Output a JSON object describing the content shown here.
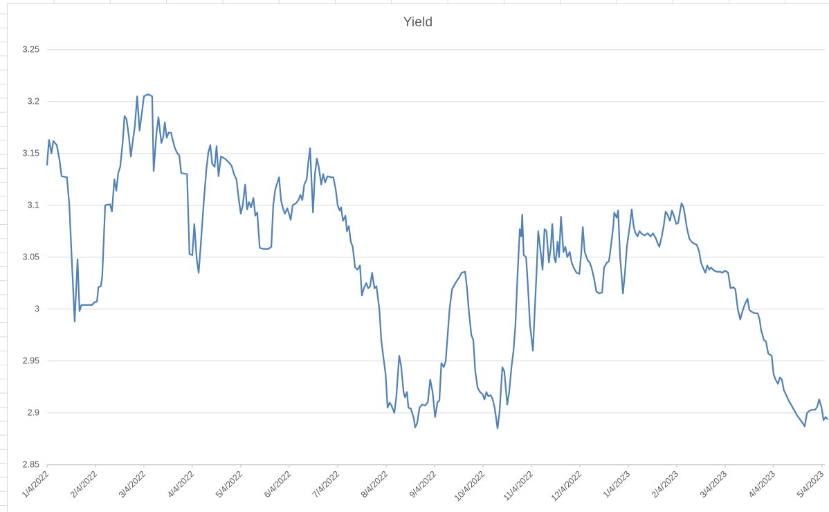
{
  "chart_data": {
    "type": "line",
    "title": "Yield",
    "series": [
      {
        "name": "Yield"
      }
    ],
    "xlabel": "",
    "ylabel": "",
    "ylim": [
      2.85,
      3.25
    ],
    "y_tick_interval": 0.05,
    "y_tick_labels": [
      "2.85",
      "2.9",
      "2.95",
      "3",
      "3.05",
      "3.1",
      "3.15",
      "3.2",
      "3.25"
    ],
    "x_tick_labels": [
      "1/4/2022",
      "2/4/2022",
      "3/4/2022",
      "4/4/2022",
      "5/4/2022",
      "6/4/2022",
      "7/4/2022",
      "8/4/2022",
      "9/4/2022",
      "10/4/2022",
      "11/4/2022",
      "12/4/2022",
      "1/4/2023",
      "2/4/2023",
      "3/4/2023",
      "4/4/2023",
      "5/4/2023"
    ],
    "x_unit": "months since 1/4/2022",
    "grid": "horizontal-major",
    "legend_position": "none",
    "line_color": "#4F81BD",
    "gridline_color": "#D9D9D9",
    "axis_color": "#BFBFBF",
    "tick_label_color": "#595959",
    "title_color": "#595959",
    "background": "#FFFFFF",
    "points": [
      [
        0.0,
        3.139
      ],
      [
        0.04,
        3.163
      ],
      [
        0.09,
        3.15
      ],
      [
        0.13,
        3.162
      ],
      [
        0.2,
        3.158
      ],
      [
        0.26,
        3.143
      ],
      [
        0.3,
        3.128
      ],
      [
        0.41,
        3.127
      ],
      [
        0.46,
        3.1
      ],
      [
        0.51,
        3.048
      ],
      [
        0.57,
        2.988
      ],
      [
        0.63,
        3.048
      ],
      [
        0.67,
        2.998
      ],
      [
        0.71,
        3.004
      ],
      [
        0.93,
        3.004
      ],
      [
        0.99,
        3.007
      ],
      [
        1.03,
        3.007
      ],
      [
        1.06,
        3.021
      ],
      [
        1.11,
        3.022
      ],
      [
        1.14,
        3.032
      ],
      [
        1.2,
        3.1
      ],
      [
        1.3,
        3.101
      ],
      [
        1.34,
        3.094
      ],
      [
        1.39,
        3.125
      ],
      [
        1.43,
        3.114
      ],
      [
        1.47,
        3.131
      ],
      [
        1.51,
        3.137
      ],
      [
        1.56,
        3.16
      ],
      [
        1.6,
        3.186
      ],
      [
        1.64,
        3.183
      ],
      [
        1.69,
        3.166
      ],
      [
        1.73,
        3.147
      ],
      [
        1.77,
        3.162
      ],
      [
        1.81,
        3.175
      ],
      [
        1.86,
        3.205
      ],
      [
        1.91,
        3.172
      ],
      [
        1.96,
        3.19
      ],
      [
        2.0,
        3.205
      ],
      [
        2.09,
        3.207
      ],
      [
        2.17,
        3.205
      ],
      [
        2.2,
        3.133
      ],
      [
        2.26,
        3.17
      ],
      [
        2.3,
        3.185
      ],
      [
        2.36,
        3.16
      ],
      [
        2.4,
        3.166
      ],
      [
        2.43,
        3.18
      ],
      [
        2.47,
        3.165
      ],
      [
        2.51,
        3.17
      ],
      [
        2.56,
        3.17
      ],
      [
        2.6,
        3.162
      ],
      [
        2.64,
        3.155
      ],
      [
        2.69,
        3.15
      ],
      [
        2.73,
        3.148
      ],
      [
        2.77,
        3.131
      ],
      [
        2.89,
        3.13
      ],
      [
        2.94,
        3.053
      ],
      [
        3.0,
        3.052
      ],
      [
        3.04,
        3.082
      ],
      [
        3.09,
        3.048
      ],
      [
        3.13,
        3.035
      ],
      [
        3.17,
        3.06
      ],
      [
        3.23,
        3.1
      ],
      [
        3.29,
        3.135
      ],
      [
        3.33,
        3.151
      ],
      [
        3.37,
        3.158
      ],
      [
        3.41,
        3.14
      ],
      [
        3.46,
        3.137
      ],
      [
        3.5,
        3.157
      ],
      [
        3.54,
        3.128
      ],
      [
        3.59,
        3.147
      ],
      [
        3.67,
        3.145
      ],
      [
        3.74,
        3.142
      ],
      [
        3.81,
        3.138
      ],
      [
        3.86,
        3.13
      ],
      [
        3.91,
        3.125
      ],
      [
        3.96,
        3.105
      ],
      [
        4.0,
        3.092
      ],
      [
        4.04,
        3.1
      ],
      [
        4.09,
        3.12
      ],
      [
        4.13,
        3.096
      ],
      [
        4.17,
        3.103
      ],
      [
        4.21,
        3.098
      ],
      [
        4.26,
        3.107
      ],
      [
        4.3,
        3.09
      ],
      [
        4.34,
        3.093
      ],
      [
        4.39,
        3.059
      ],
      [
        4.46,
        3.058
      ],
      [
        4.57,
        3.058
      ],
      [
        4.63,
        3.06
      ],
      [
        4.67,
        3.1
      ],
      [
        4.71,
        3.115
      ],
      [
        4.79,
        3.127
      ],
      [
        4.83,
        3.105
      ],
      [
        4.87,
        3.097
      ],
      [
        4.91,
        3.092
      ],
      [
        4.96,
        3.097
      ],
      [
        5.0,
        3.091
      ],
      [
        5.03,
        3.086
      ],
      [
        5.07,
        3.1
      ],
      [
        5.14,
        3.102
      ],
      [
        5.19,
        3.105
      ],
      [
        5.23,
        3.11
      ],
      [
        5.27,
        3.105
      ],
      [
        5.31,
        3.12
      ],
      [
        5.36,
        3.125
      ],
      [
        5.39,
        3.14
      ],
      [
        5.43,
        3.155
      ],
      [
        5.49,
        3.093
      ],
      [
        5.53,
        3.13
      ],
      [
        5.57,
        3.145
      ],
      [
        5.61,
        3.137
      ],
      [
        5.66,
        3.12
      ],
      [
        5.7,
        3.13
      ],
      [
        5.74,
        3.122
      ],
      [
        5.79,
        3.128
      ],
      [
        5.86,
        3.127
      ],
      [
        5.91,
        3.127
      ],
      [
        5.96,
        3.115
      ],
      [
        6.0,
        3.1
      ],
      [
        6.04,
        3.095
      ],
      [
        6.07,
        3.098
      ],
      [
        6.11,
        3.085
      ],
      [
        6.16,
        3.09
      ],
      [
        6.19,
        3.075
      ],
      [
        6.23,
        3.08
      ],
      [
        6.27,
        3.065
      ],
      [
        6.31,
        3.06
      ],
      [
        6.36,
        3.04
      ],
      [
        6.41,
        3.038
      ],
      [
        6.46,
        3.042
      ],
      [
        6.5,
        3.013
      ],
      [
        6.54,
        3.02
      ],
      [
        6.59,
        3.025
      ],
      [
        6.63,
        3.02
      ],
      [
        6.67,
        3.022
      ],
      [
        6.71,
        3.035
      ],
      [
        6.76,
        3.02
      ],
      [
        6.8,
        3.022
      ],
      [
        6.86,
        3.0
      ],
      [
        6.9,
        2.97
      ],
      [
        6.94,
        2.955
      ],
      [
        6.99,
        2.937
      ],
      [
        7.03,
        2.905
      ],
      [
        7.07,
        2.91
      ],
      [
        7.11,
        2.907
      ],
      [
        7.17,
        2.9
      ],
      [
        7.21,
        2.915
      ],
      [
        7.27,
        2.955
      ],
      [
        7.31,
        2.945
      ],
      [
        7.36,
        2.92
      ],
      [
        7.39,
        2.915
      ],
      [
        7.43,
        2.92
      ],
      [
        7.46,
        2.905
      ],
      [
        7.51,
        2.904
      ],
      [
        7.57,
        2.895
      ],
      [
        7.6,
        2.886
      ],
      [
        7.64,
        2.89
      ],
      [
        7.69,
        2.905
      ],
      [
        7.74,
        2.908
      ],
      [
        7.8,
        2.907
      ],
      [
        7.86,
        2.91
      ],
      [
        7.91,
        2.932
      ],
      [
        7.96,
        2.92
      ],
      [
        8.01,
        2.896
      ],
      [
        8.06,
        2.91
      ],
      [
        8.1,
        2.912
      ],
      [
        8.14,
        2.948
      ],
      [
        8.19,
        2.944
      ],
      [
        8.23,
        2.95
      ],
      [
        8.27,
        2.975
      ],
      [
        8.31,
        3.0
      ],
      [
        8.36,
        3.019
      ],
      [
        8.43,
        3.025
      ],
      [
        8.5,
        3.03
      ],
      [
        8.56,
        3.035
      ],
      [
        8.63,
        3.036
      ],
      [
        8.67,
        3.02
      ],
      [
        8.71,
        2.997
      ],
      [
        8.76,
        2.975
      ],
      [
        8.8,
        2.97
      ],
      [
        8.84,
        2.94
      ],
      [
        8.89,
        2.924
      ],
      [
        8.94,
        2.92
      ],
      [
        8.99,
        2.918
      ],
      [
        9.03,
        2.913
      ],
      [
        9.07,
        2.92
      ],
      [
        9.11,
        2.916
      ],
      [
        9.16,
        2.917
      ],
      [
        9.2,
        2.913
      ],
      [
        9.24,
        2.905
      ],
      [
        9.3,
        2.885
      ],
      [
        9.34,
        2.9
      ],
      [
        9.4,
        2.944
      ],
      [
        9.44,
        2.94
      ],
      [
        9.5,
        2.908
      ],
      [
        9.54,
        2.92
      ],
      [
        9.59,
        2.945
      ],
      [
        9.63,
        2.96
      ],
      [
        9.67,
        2.985
      ],
      [
        9.71,
        3.03
      ],
      [
        9.76,
        3.077
      ],
      [
        9.79,
        3.07
      ],
      [
        9.81,
        3.091
      ],
      [
        9.84,
        3.052
      ],
      [
        9.89,
        3.05
      ],
      [
        9.93,
        3.02
      ],
      [
        9.97,
        2.985
      ],
      [
        10.03,
        2.96
      ],
      [
        10.07,
        3.0
      ],
      [
        10.11,
        3.04
      ],
      [
        10.14,
        3.075
      ],
      [
        10.19,
        3.055
      ],
      [
        10.23,
        3.038
      ],
      [
        10.27,
        3.077
      ],
      [
        10.31,
        3.075
      ],
      [
        10.36,
        3.045
      ],
      [
        10.4,
        3.06
      ],
      [
        10.43,
        3.082
      ],
      [
        10.47,
        3.05
      ],
      [
        10.5,
        3.045
      ],
      [
        10.54,
        3.065
      ],
      [
        10.57,
        3.05
      ],
      [
        10.61,
        3.089
      ],
      [
        10.66,
        3.055
      ],
      [
        10.7,
        3.06
      ],
      [
        10.74,
        3.05
      ],
      [
        10.79,
        3.055
      ],
      [
        10.83,
        3.045
      ],
      [
        10.87,
        3.04
      ],
      [
        10.93,
        3.035
      ],
      [
        10.99,
        3.034
      ],
      [
        11.03,
        3.055
      ],
      [
        11.06,
        3.079
      ],
      [
        11.1,
        3.055
      ],
      [
        11.16,
        3.047
      ],
      [
        11.2,
        3.045
      ],
      [
        11.24,
        3.04
      ],
      [
        11.29,
        3.03
      ],
      [
        11.34,
        3.017
      ],
      [
        11.4,
        3.015
      ],
      [
        11.46,
        3.016
      ],
      [
        11.5,
        3.04
      ],
      [
        11.56,
        3.045
      ],
      [
        11.6,
        3.046
      ],
      [
        11.64,
        3.06
      ],
      [
        11.69,
        3.08
      ],
      [
        11.71,
        3.093
      ],
      [
        11.76,
        3.088
      ],
      [
        11.79,
        3.095
      ],
      [
        11.83,
        3.05
      ],
      [
        11.89,
        3.015
      ],
      [
        11.93,
        3.035
      ],
      [
        11.97,
        3.06
      ],
      [
        12.03,
        3.08
      ],
      [
        12.07,
        3.096
      ],
      [
        12.11,
        3.08
      ],
      [
        12.14,
        3.074
      ],
      [
        12.19,
        3.07
      ],
      [
        12.23,
        3.075
      ],
      [
        12.29,
        3.072
      ],
      [
        12.34,
        3.071
      ],
      [
        12.4,
        3.073
      ],
      [
        12.46,
        3.07
      ],
      [
        12.51,
        3.073
      ],
      [
        12.57,
        3.068
      ],
      [
        12.6,
        3.064
      ],
      [
        12.64,
        3.06
      ],
      [
        12.69,
        3.07
      ],
      [
        12.73,
        3.08
      ],
      [
        12.77,
        3.094
      ],
      [
        12.81,
        3.091
      ],
      [
        12.86,
        3.085
      ],
      [
        12.9,
        3.095
      ],
      [
        12.94,
        3.09
      ],
      [
        12.99,
        3.082
      ],
      [
        13.03,
        3.083
      ],
      [
        13.07,
        3.095
      ],
      [
        13.1,
        3.102
      ],
      [
        13.14,
        3.098
      ],
      [
        13.17,
        3.09
      ],
      [
        13.21,
        3.078
      ],
      [
        13.26,
        3.068
      ],
      [
        13.3,
        3.065
      ],
      [
        13.36,
        3.063
      ],
      [
        13.41,
        3.062
      ],
      [
        13.46,
        3.056
      ],
      [
        13.5,
        3.045
      ],
      [
        13.54,
        3.04
      ],
      [
        13.59,
        3.035
      ],
      [
        13.63,
        3.042
      ],
      [
        13.67,
        3.038
      ],
      [
        13.71,
        3.04
      ],
      [
        13.77,
        3.037
      ],
      [
        13.83,
        3.036
      ],
      [
        13.89,
        3.036
      ],
      [
        13.94,
        3.035
      ],
      [
        14.0,
        3.037
      ],
      [
        14.06,
        3.035
      ],
      [
        14.11,
        3.02
      ],
      [
        14.17,
        3.021
      ],
      [
        14.21,
        3.019
      ],
      [
        14.26,
        3.0
      ],
      [
        14.31,
        2.99
      ],
      [
        14.37,
        3.0
      ],
      [
        14.41,
        3.005
      ],
      [
        14.46,
        3.01
      ],
      [
        14.5,
        2.999
      ],
      [
        14.56,
        2.997
      ],
      [
        14.61,
        2.996
      ],
      [
        14.67,
        2.996
      ],
      [
        14.71,
        2.99
      ],
      [
        14.74,
        2.98
      ],
      [
        14.8,
        2.97
      ],
      [
        14.84,
        2.969
      ],
      [
        14.89,
        2.957
      ],
      [
        14.96,
        2.955
      ],
      [
        15.0,
        2.937
      ],
      [
        15.04,
        2.932
      ],
      [
        15.09,
        2.928
      ],
      [
        15.13,
        2.934
      ],
      [
        15.17,
        2.932
      ],
      [
        15.21,
        2.922
      ],
      [
        15.26,
        2.917
      ],
      [
        15.31,
        2.912
      ],
      [
        15.37,
        2.907
      ],
      [
        15.43,
        2.902
      ],
      [
        15.49,
        2.897
      ],
      [
        15.54,
        2.894
      ],
      [
        15.6,
        2.89
      ],
      [
        15.64,
        2.887
      ],
      [
        15.69,
        2.9
      ],
      [
        15.74,
        2.902
      ],
      [
        15.8,
        2.903
      ],
      [
        15.86,
        2.903
      ],
      [
        15.9,
        2.906
      ],
      [
        15.94,
        2.913
      ],
      [
        15.99,
        2.905
      ],
      [
        16.03,
        2.893
      ],
      [
        16.07,
        2.896
      ],
      [
        16.11,
        2.894
      ]
    ]
  }
}
